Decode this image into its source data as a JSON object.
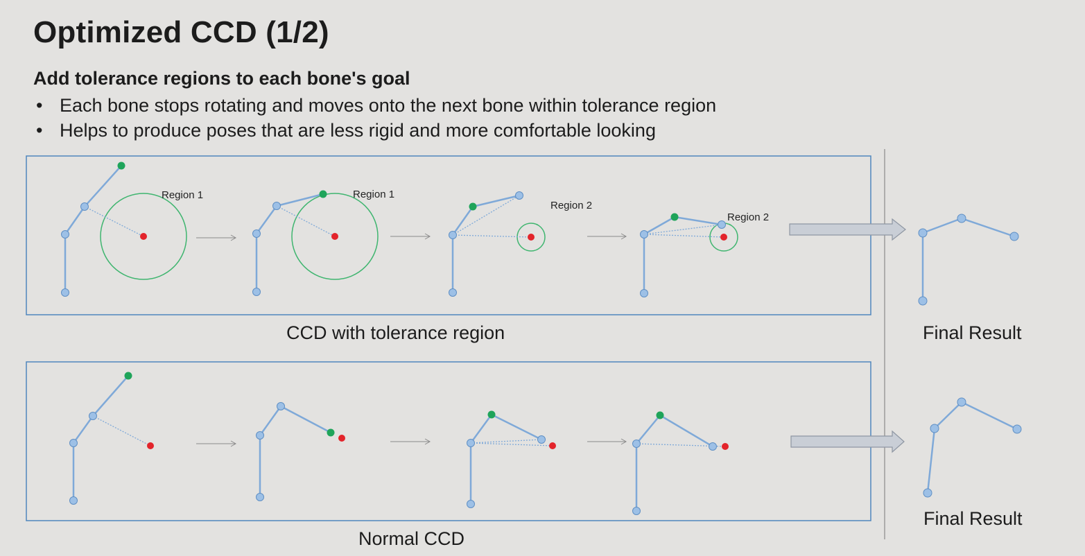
{
  "slide": {
    "title": "Optimized CCD (1/2)",
    "subtitle": "Add tolerance regions to each bone's goal",
    "bullets": [
      "Each bone stops rotating and moves onto the next bone within tolerance region",
      "Helps to produce poses that are less rigid and more comfortable looking"
    ],
    "bullet_glyph": "•"
  },
  "panels": {
    "top_caption": "CCD with tolerance region",
    "bottom_caption": "Normal CCD",
    "final_result_top": "Final Result",
    "final_result_bottom": "Final Result",
    "region_labels": [
      "Region 1",
      "Region 1",
      "Region 2",
      "Region 2"
    ]
  },
  "colors": {
    "joint": "#8fb6e0",
    "bone": "#7fa9d8",
    "end_effector": "#1fa45a",
    "goal": "#e3242b",
    "tolerance_circle": "#3fb56f",
    "panel_border": "#4f86bd",
    "arrow_fill": "#c9ced6",
    "arrow_stroke": "#8e96a2"
  }
}
